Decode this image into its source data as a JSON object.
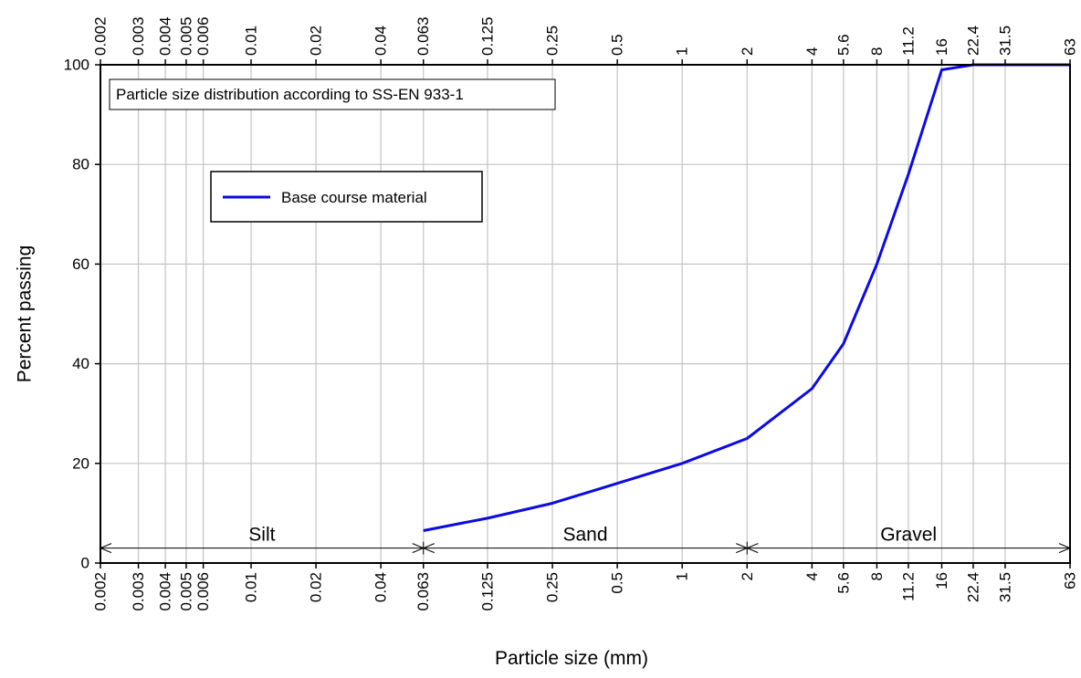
{
  "chart_data": {
    "type": "line",
    "xscale": "log",
    "xlabel": "Particle size (mm)",
    "ylabel": "Percent passing",
    "xlim": [
      0.002,
      63
    ],
    "ylim": [
      0,
      100
    ],
    "grid": true,
    "x_ticks": [
      0.002,
      0.003,
      0.004,
      0.005,
      0.006,
      0.01,
      0.02,
      0.04,
      0.063,
      0.125,
      0.25,
      0.5,
      1,
      2,
      4,
      5.6,
      8,
      11.2,
      16,
      22.4,
      31.5,
      63
    ],
    "x_tick_labels": [
      "0.002",
      "0.003",
      "0.004",
      "0.005",
      "0.006",
      "0.01",
      "0.02",
      "0.04",
      "0.063",
      "0.125",
      "0.25",
      "0.5",
      "1",
      "2",
      "4",
      "5.6",
      "8",
      "11.2",
      "16",
      "22.4",
      "31.5",
      "63"
    ],
    "y_ticks": [
      0,
      20,
      40,
      60,
      80,
      100
    ],
    "y_tick_labels": [
      "0",
      "20",
      "40",
      "60",
      "80",
      "100"
    ],
    "annotation": "Particle size distribution according to SS-EN 933-1",
    "legend_placement": "upper-left",
    "zones": [
      {
        "label": "Silt",
        "from": 0.002,
        "to": 0.063
      },
      {
        "label": "Sand",
        "from": 0.063,
        "to": 2
      },
      {
        "label": "Gravel",
        "from": 2,
        "to": 63
      }
    ],
    "zones_y": 3,
    "series": [
      {
        "name": "Base course material",
        "color": "#0a0ae6",
        "x": [
          0.063,
          0.125,
          0.25,
          0.5,
          1,
          2,
          4,
          5.6,
          8,
          11.2,
          16,
          22.4,
          31.5,
          63
        ],
        "y": [
          6.5,
          9,
          12,
          16,
          20,
          25,
          35,
          44,
          60,
          78,
          99,
          100,
          100,
          100
        ]
      }
    ]
  }
}
